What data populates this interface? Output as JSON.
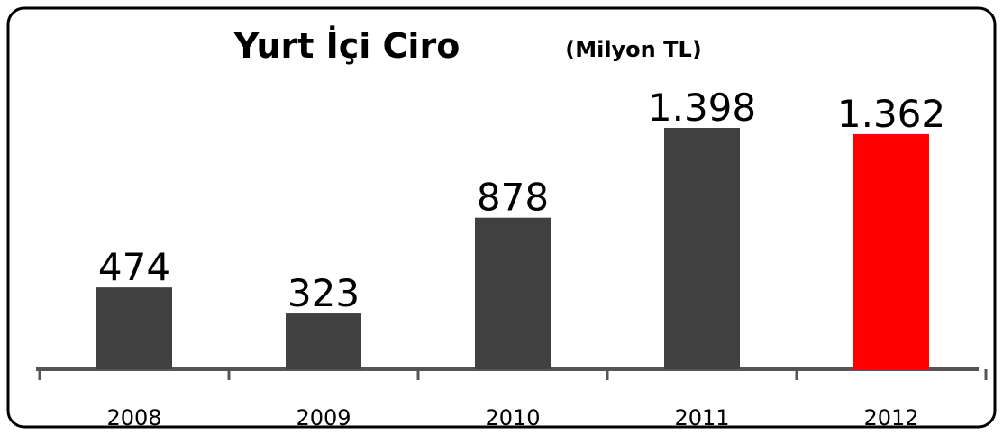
{
  "chart_data": {
    "type": "bar",
    "title": "Yurt İçi Ciro",
    "subtitle": "(Milyon TL)",
    "categories": [
      "2008",
      "2009",
      "2010",
      "2011",
      "2012"
    ],
    "values": [
      474,
      323,
      878,
      1398,
      1362
    ],
    "value_labels": [
      "474",
      "323",
      "878",
      "1.398",
      "1.362"
    ],
    "colors": [
      "#404040",
      "#404040",
      "#404040",
      "#404040",
      "#ff0000"
    ]
  }
}
